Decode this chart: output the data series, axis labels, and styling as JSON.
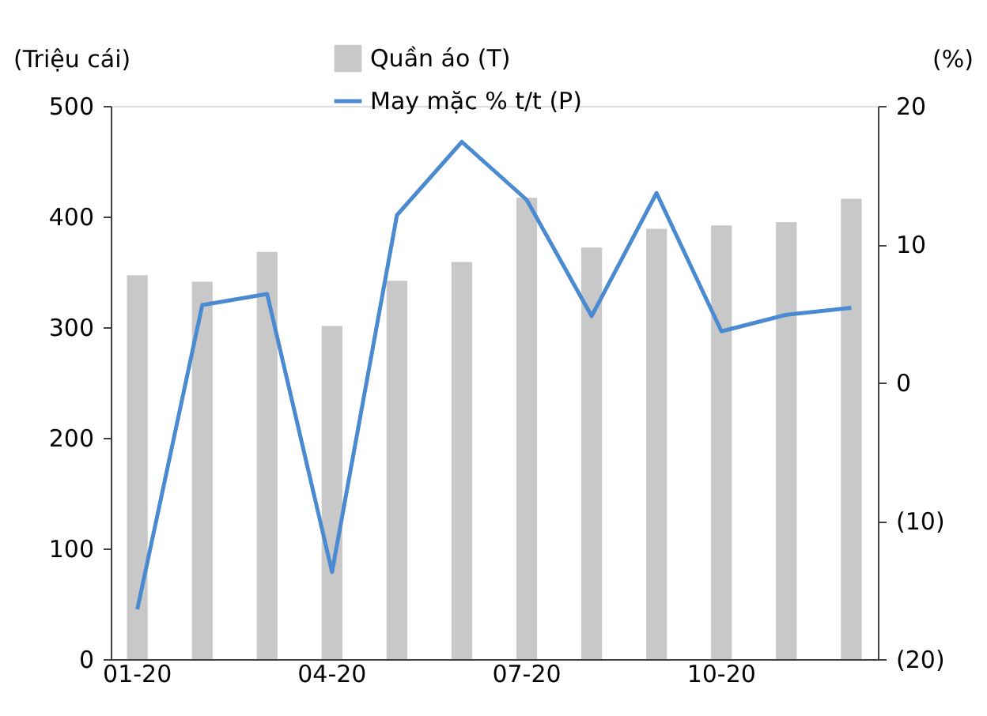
{
  "chart_data": {
    "type": "bar",
    "categories": [
      "01-20",
      null,
      null,
      "04-20",
      null,
      null,
      "07-20",
      null,
      null,
      "10-20",
      null,
      null
    ],
    "ylabel": "(Triệu cái)",
    "y2label": "(%)",
    "series": [
      {
        "name": "Quần áo (T)",
        "color": "#c8c8c8",
        "values": [
          347,
          341,
          368,
          301,
          342,
          359,
          417,
          372,
          389,
          392,
          395,
          416
        ]
      },
      {
        "name": "May mặc % t/t (P)",
        "type": "line",
        "axis": "y2",
        "color": "#4a8ad0",
        "values": [
          -16.4,
          5.6,
          6.4,
          -13.7,
          12.1,
          17.4,
          13.2,
          4.8,
          13.7,
          3.7,
          4.9,
          5.4
        ]
      }
    ],
    "ylim": [
      0,
      500
    ],
    "yticks": [
      0,
      100,
      200,
      300,
      400,
      500
    ],
    "y2lim": [
      -20,
      20
    ],
    "y2ticks": [
      {
        "value": -20,
        "label": "(20)"
      },
      {
        "value": -10,
        "label": "(10)"
      },
      0,
      10,
      20
    ],
    "grid": false,
    "legend": "top",
    "marker": "none",
    "line_style": "solid"
  }
}
